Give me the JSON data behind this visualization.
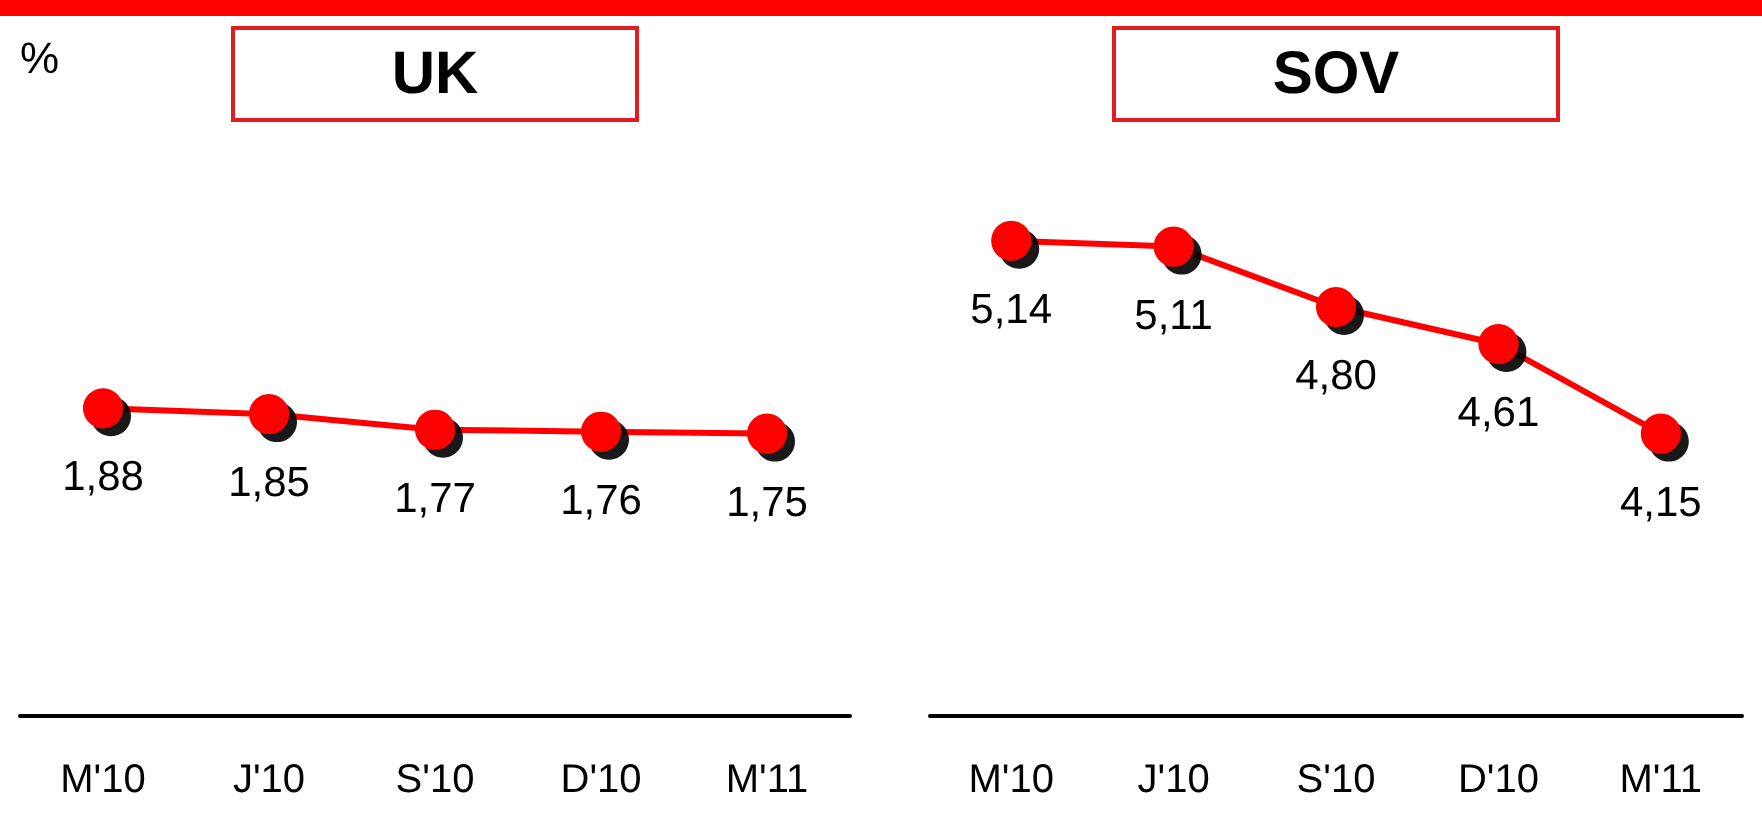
{
  "chart_data": [
    {
      "type": "line",
      "title": "UK",
      "ylabel": "%",
      "categories": [
        "M'10",
        "J'10",
        "S'10",
        "D'10",
        "M'11"
      ],
      "series": [
        {
          "color": "#ff0000",
          "values": [
            1.88,
            1.85,
            1.77,
            1.76,
            1.75
          ],
          "value_labels": [
            "1,88",
            "1,85",
            "1,77",
            "1,76",
            "1,75"
          ]
        }
      ],
      "tick_labels": "x",
      "marker": "circle",
      "line_style": "solid"
    },
    {
      "type": "line",
      "title": "SOV",
      "categories": [
        "M'10",
        "J'10",
        "S'10",
        "D'10",
        "M'11"
      ],
      "series": [
        {
          "color": "#ff0000",
          "values": [
            5.14,
            5.11,
            4.8,
            4.61,
            4.15
          ],
          "value_labels": [
            "5,14",
            "5,11",
            "4,80",
            "4,61",
            "4,15"
          ]
        }
      ],
      "tick_labels": "x",
      "marker": "circle",
      "line_style": "solid"
    }
  ]
}
